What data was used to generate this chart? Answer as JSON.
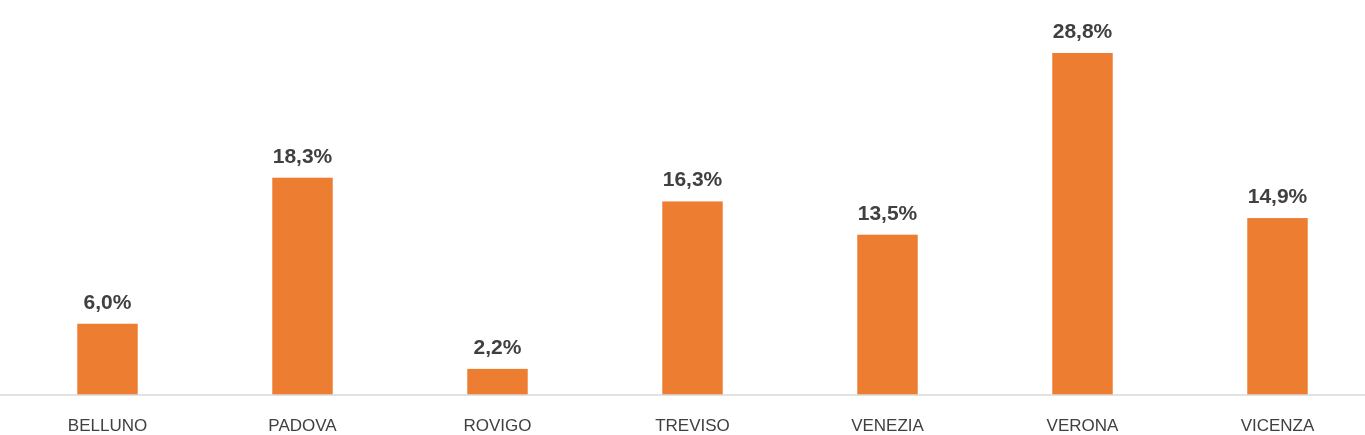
{
  "chart_data": {
    "type": "bar",
    "categories": [
      "BELLUNO",
      "PADOVA",
      "ROVIGO",
      "TREVISO",
      "VENEZIA",
      "VERONA",
      "VICENZA"
    ],
    "values": [
      6.0,
      18.3,
      2.2,
      16.3,
      13.5,
      28.8,
      14.9
    ],
    "value_labels": [
      "6,0%",
      "18,3%",
      "2,2%",
      "16,3%",
      "13,5%",
      "28,8%",
      "14,9%"
    ],
    "color": "#ed7d31"
  }
}
